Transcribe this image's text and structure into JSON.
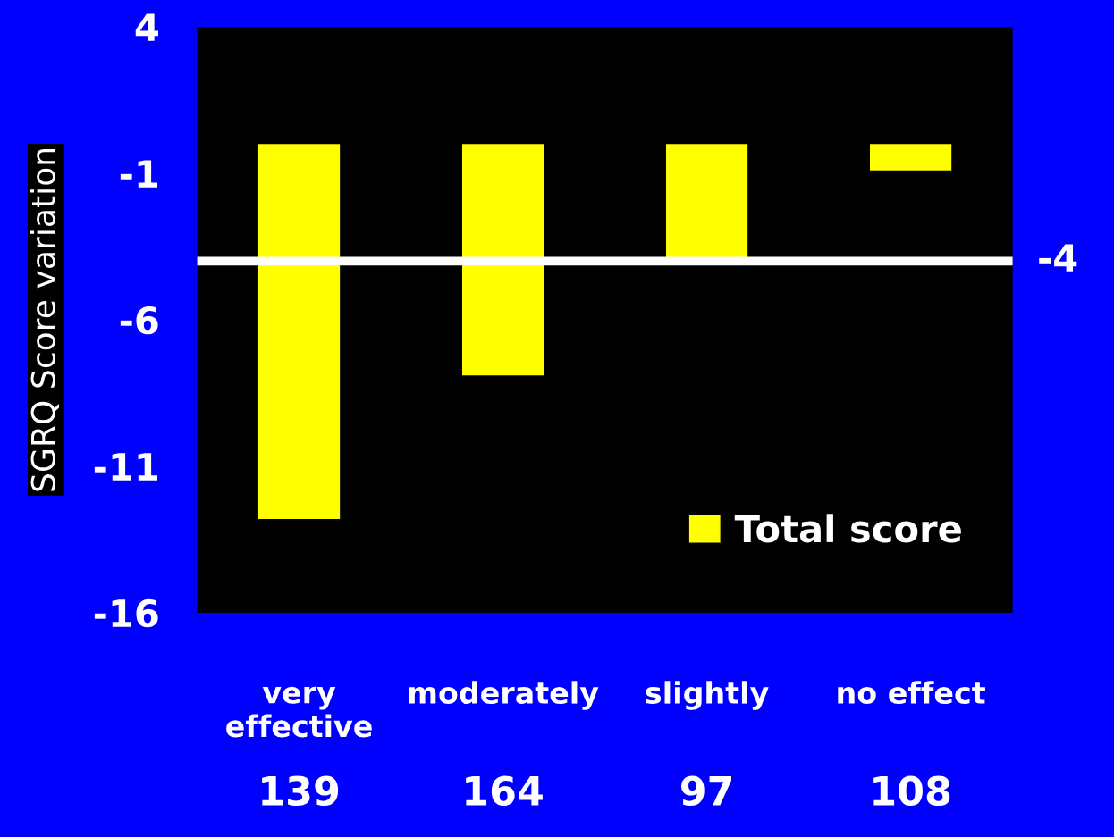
{
  "chart_data": {
    "type": "bar",
    "ylabel": "SGRQ Score variation",
    "categories": [
      "very\neffective",
      "moderately",
      "slightly",
      "no effect"
    ],
    "series": [
      {
        "name": "Total score",
        "color": "#ffff00",
        "values": [
          -12.8,
          -7.9,
          -3.9,
          -0.9
        ]
      }
    ],
    "ylim": [
      -16,
      4
    ],
    "yticks": [
      -16,
      -11,
      -6,
      -1,
      4
    ],
    "ref_lines": [
      {
        "axis": "y",
        "value": -4,
        "label": "-4",
        "color": "#ffffff"
      }
    ],
    "annotations": [
      "139",
      "164",
      "97",
      "108"
    ],
    "legend": "bottom right",
    "grid": false
  }
}
